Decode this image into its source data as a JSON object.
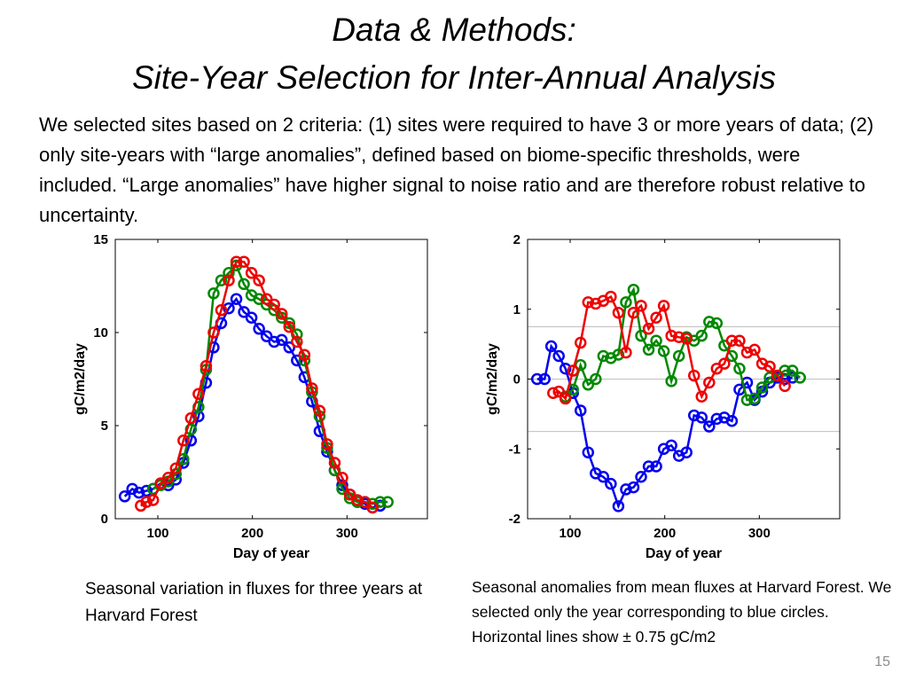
{
  "slide": {
    "title_line1": "Data & Methods:",
    "title_line2": "Site-Year Selection for Inter-Annual Analysis",
    "body": "We selected sites based on 2 criteria: (1) sites were required to have 3 or more years of data; (2) only site-years with “large anomalies”, defined based on biome-specific thresholds, were included. “Large anomalies” have higher signal to noise ratio and are therefore robust relative to uncertainty.",
    "caption_left": "Seasonal variation in fluxes for three years at Harvard Forest",
    "caption_right": "Seasonal anomalies from mean fluxes at Harvard Forest.  We selected only the year corresponding to blue circles. Horizontal lines show ± 0.75 gC/m2",
    "slide_number": "15"
  },
  "chart_data": [
    {
      "type": "line",
      "xlabel": "Day of year",
      "ylabel": "gC/m2/day",
      "xlim": [
        55,
        385
      ],
      "ylim": [
        0,
        15
      ],
      "xticks": [
        100,
        200,
        300
      ],
      "yticks": [
        0,
        5,
        10,
        15
      ],
      "grid": false,
      "markers": "circle",
      "series": [
        {
          "color": "#0000ee",
          "x": [
            65,
            73,
            80,
            88,
            95,
            103,
            111,
            119,
            127,
            135,
            143,
            151,
            159,
            167,
            175,
            183,
            191,
            199,
            207,
            215,
            223,
            231,
            239,
            247,
            255,
            263,
            271,
            279,
            287,
            295,
            303,
            311,
            319,
            327,
            335
          ],
          "y": [
            1.2,
            1.6,
            1.4,
            1.5,
            1.6,
            1.9,
            1.8,
            2.1,
            3.0,
            4.2,
            5.5,
            7.3,
            9.2,
            10.5,
            11.3,
            11.8,
            11.1,
            10.8,
            10.2,
            9.8,
            9.5,
            9.6,
            9.2,
            8.5,
            7.6,
            6.3,
            4.7,
            3.6,
            2.6,
            1.8,
            1.3,
            0.9,
            0.8,
            0.6,
            0.7
          ]
        },
        {
          "color": "#008800",
          "x": [
            95,
            103,
            111,
            119,
            127,
            135,
            143,
            151,
            159,
            167,
            175,
            183,
            191,
            199,
            207,
            215,
            223,
            231,
            239,
            247,
            255,
            263,
            271,
            279,
            287,
            295,
            303,
            311,
            319,
            327,
            335,
            343
          ],
          "y": [
            1.6,
            1.8,
            2.0,
            2.4,
            3.2,
            4.8,
            6.0,
            8.0,
            12.1,
            12.8,
            13.2,
            13.6,
            12.6,
            12.0,
            11.8,
            11.5,
            11.2,
            10.8,
            10.5,
            9.9,
            8.5,
            6.8,
            5.5,
            3.8,
            2.6,
            1.6,
            1.1,
            0.9,
            0.9,
            0.8,
            0.9,
            0.9
          ]
        },
        {
          "color": "#ee0000",
          "x": [
            82,
            88,
            95,
            103,
            111,
            119,
            127,
            135,
            143,
            151,
            159,
            167,
            175,
            183,
            191,
            199,
            207,
            215,
            223,
            231,
            239,
            247,
            255,
            263,
            271,
            279,
            287,
            295,
            303,
            311,
            319,
            327
          ],
          "y": [
            0.7,
            0.9,
            1.0,
            1.9,
            2.2,
            2.7,
            4.2,
            5.4,
            6.7,
            8.2,
            10.0,
            11.2,
            12.8,
            13.8,
            13.8,
            13.2,
            12.8,
            11.8,
            11.5,
            11.0,
            10.3,
            9.5,
            8.8,
            7.0,
            5.8,
            4.0,
            3.0,
            2.2,
            1.3,
            1.0,
            0.9,
            0.6
          ]
        }
      ]
    },
    {
      "type": "line",
      "xlabel": "Day of year",
      "ylabel": "gC/m2/day",
      "xlim": [
        55,
        385
      ],
      "ylim": [
        -2,
        2
      ],
      "xticks": [
        100,
        200,
        300
      ],
      "yticks": [
        -2,
        -1,
        0,
        1,
        2
      ],
      "hlines": [
        0.75,
        0,
        -0.75
      ],
      "grid": false,
      "markers": "circle",
      "series": [
        {
          "color": "#0000ee",
          "x": [
            65,
            73,
            80,
            88,
            95,
            103,
            111,
            119,
            127,
            135,
            143,
            151,
            159,
            167,
            175,
            183,
            191,
            199,
            207,
            215,
            223,
            231,
            239,
            247,
            255,
            263,
            271,
            279,
            287,
            295,
            303,
            311,
            319,
            327,
            335
          ],
          "y": [
            0.0,
            0.0,
            0.47,
            0.33,
            0.15,
            -0.2,
            -0.45,
            -1.05,
            -1.35,
            -1.4,
            -1.5,
            -1.82,
            -1.58,
            -1.55,
            -1.4,
            -1.25,
            -1.25,
            -1.0,
            -0.95,
            -1.1,
            -1.05,
            -0.52,
            -0.55,
            -0.68,
            -0.57,
            -0.55,
            -0.6,
            -0.15,
            -0.05,
            -0.3,
            -0.18,
            -0.05,
            0.02,
            0.0,
            0.02
          ]
        },
        {
          "color": "#008800",
          "x": [
            95,
            103,
            111,
            119,
            127,
            135,
            143,
            151,
            159,
            167,
            175,
            183,
            191,
            199,
            207,
            215,
            223,
            231,
            239,
            247,
            255,
            263,
            271,
            279,
            287,
            295,
            303,
            311,
            319,
            327,
            335,
            343
          ],
          "y": [
            -0.25,
            -0.15,
            0.2,
            -0.08,
            0.0,
            0.33,
            0.3,
            0.35,
            1.1,
            1.28,
            0.62,
            0.42,
            0.55,
            0.4,
            -0.03,
            0.33,
            0.6,
            0.55,
            0.62,
            0.82,
            0.8,
            0.48,
            0.33,
            0.15,
            -0.3,
            -0.28,
            -0.12,
            0.02,
            0.05,
            0.12,
            0.12,
            0.02
          ]
        },
        {
          "color": "#ee0000",
          "x": [
            82,
            88,
            95,
            103,
            111,
            119,
            127,
            135,
            143,
            151,
            159,
            167,
            175,
            183,
            191,
            199,
            207,
            215,
            223,
            231,
            239,
            247,
            255,
            263,
            271,
            279,
            287,
            295,
            303,
            311,
            319,
            327
          ],
          "y": [
            -0.2,
            -0.18,
            -0.28,
            0.12,
            0.52,
            1.1,
            1.08,
            1.12,
            1.18,
            0.95,
            0.38,
            0.95,
            1.05,
            0.72,
            0.88,
            1.05,
            0.62,
            0.6,
            0.58,
            0.05,
            -0.25,
            -0.05,
            0.15,
            0.22,
            0.55,
            0.55,
            0.38,
            0.42,
            0.22,
            0.18,
            0.05,
            -0.1
          ]
        }
      ]
    }
  ]
}
